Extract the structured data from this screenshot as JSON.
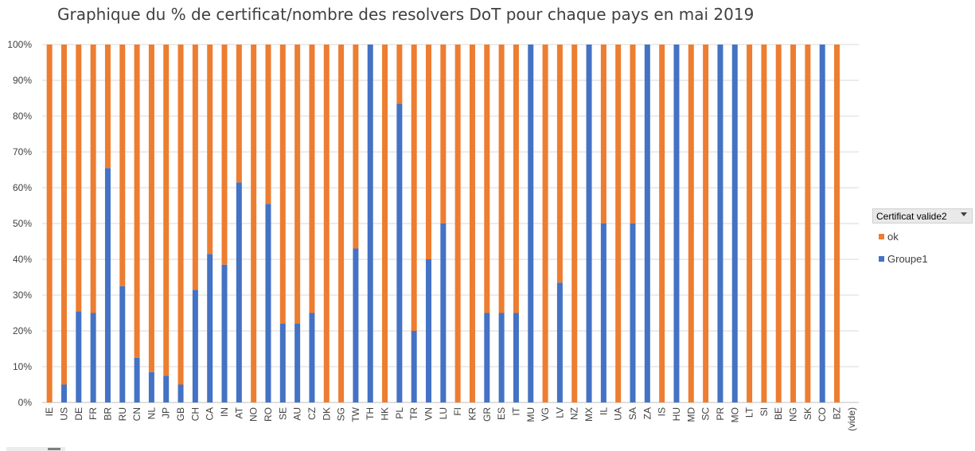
{
  "chart_data": {
    "type": "bar",
    "stacked": true,
    "title": "Graphique du % de certificat/nombre des resolvers DoT pour chaque pays en mai 2019",
    "categories": [
      "IE",
      "US",
      "DE",
      "FR",
      "BR",
      "RU",
      "CN",
      "NL",
      "JP",
      "GB",
      "CH",
      "CA",
      "IN",
      "AT",
      "NO",
      "RO",
      "SE",
      "AU",
      "CZ",
      "DK",
      "SG",
      "TW",
      "TH",
      "HK",
      "PL",
      "TR",
      "VN",
      "LU",
      "FI",
      "KR",
      "GR",
      "ES",
      "IT",
      "MU",
      "VG",
      "LV",
      "NZ",
      "MX",
      "IL",
      "UA",
      "SA",
      "ZA",
      "IS",
      "HU",
      "MD",
      "SC",
      "PR",
      "MO",
      "LT",
      "SI",
      "BE",
      "NG",
      "SK",
      "CO",
      "BZ",
      "(vide)"
    ],
    "y_ticks": [
      "0%",
      "10%",
      "20%",
      "30%",
      "40%",
      "50%",
      "60%",
      "70%",
      "80%",
      "90%",
      "100%"
    ],
    "ylim": [
      0,
      100
    ],
    "grid": true,
    "legend_position": "right",
    "legend_title": "Certificat valide2",
    "series": [
      {
        "name": "Groupe1",
        "color": "#4472c4",
        "values": [
          0,
          5,
          25.5,
          25,
          65.5,
          32.5,
          12.5,
          8.5,
          7.5,
          5,
          31.5,
          41.5,
          38.5,
          61.5,
          0,
          55.5,
          22,
          22,
          25,
          0,
          0,
          43,
          100,
          0,
          83.5,
          20,
          40,
          50,
          0,
          0,
          25,
          25,
          25,
          100,
          0,
          33.5,
          0,
          100,
          50,
          0,
          50,
          100,
          0,
          100,
          0,
          0,
          100,
          100,
          0,
          0,
          0,
          0,
          0,
          100,
          0,
          0
        ]
      },
      {
        "name": "ok",
        "color": "#ed7d31",
        "values": [
          100,
          95,
          74.5,
          75,
          34.5,
          67.5,
          87.5,
          91.5,
          92.5,
          95,
          68.5,
          58.5,
          61.5,
          38.5,
          100,
          44.5,
          78,
          78,
          75,
          100,
          100,
          57,
          0,
          100,
          16.5,
          80,
          60,
          50,
          100,
          100,
          75,
          75,
          75,
          0,
          100,
          66.5,
          100,
          0,
          50,
          100,
          50,
          0,
          100,
          0,
          100,
          100,
          0,
          0,
          100,
          100,
          100,
          100,
          100,
          0,
          100,
          0
        ]
      }
    ]
  }
}
